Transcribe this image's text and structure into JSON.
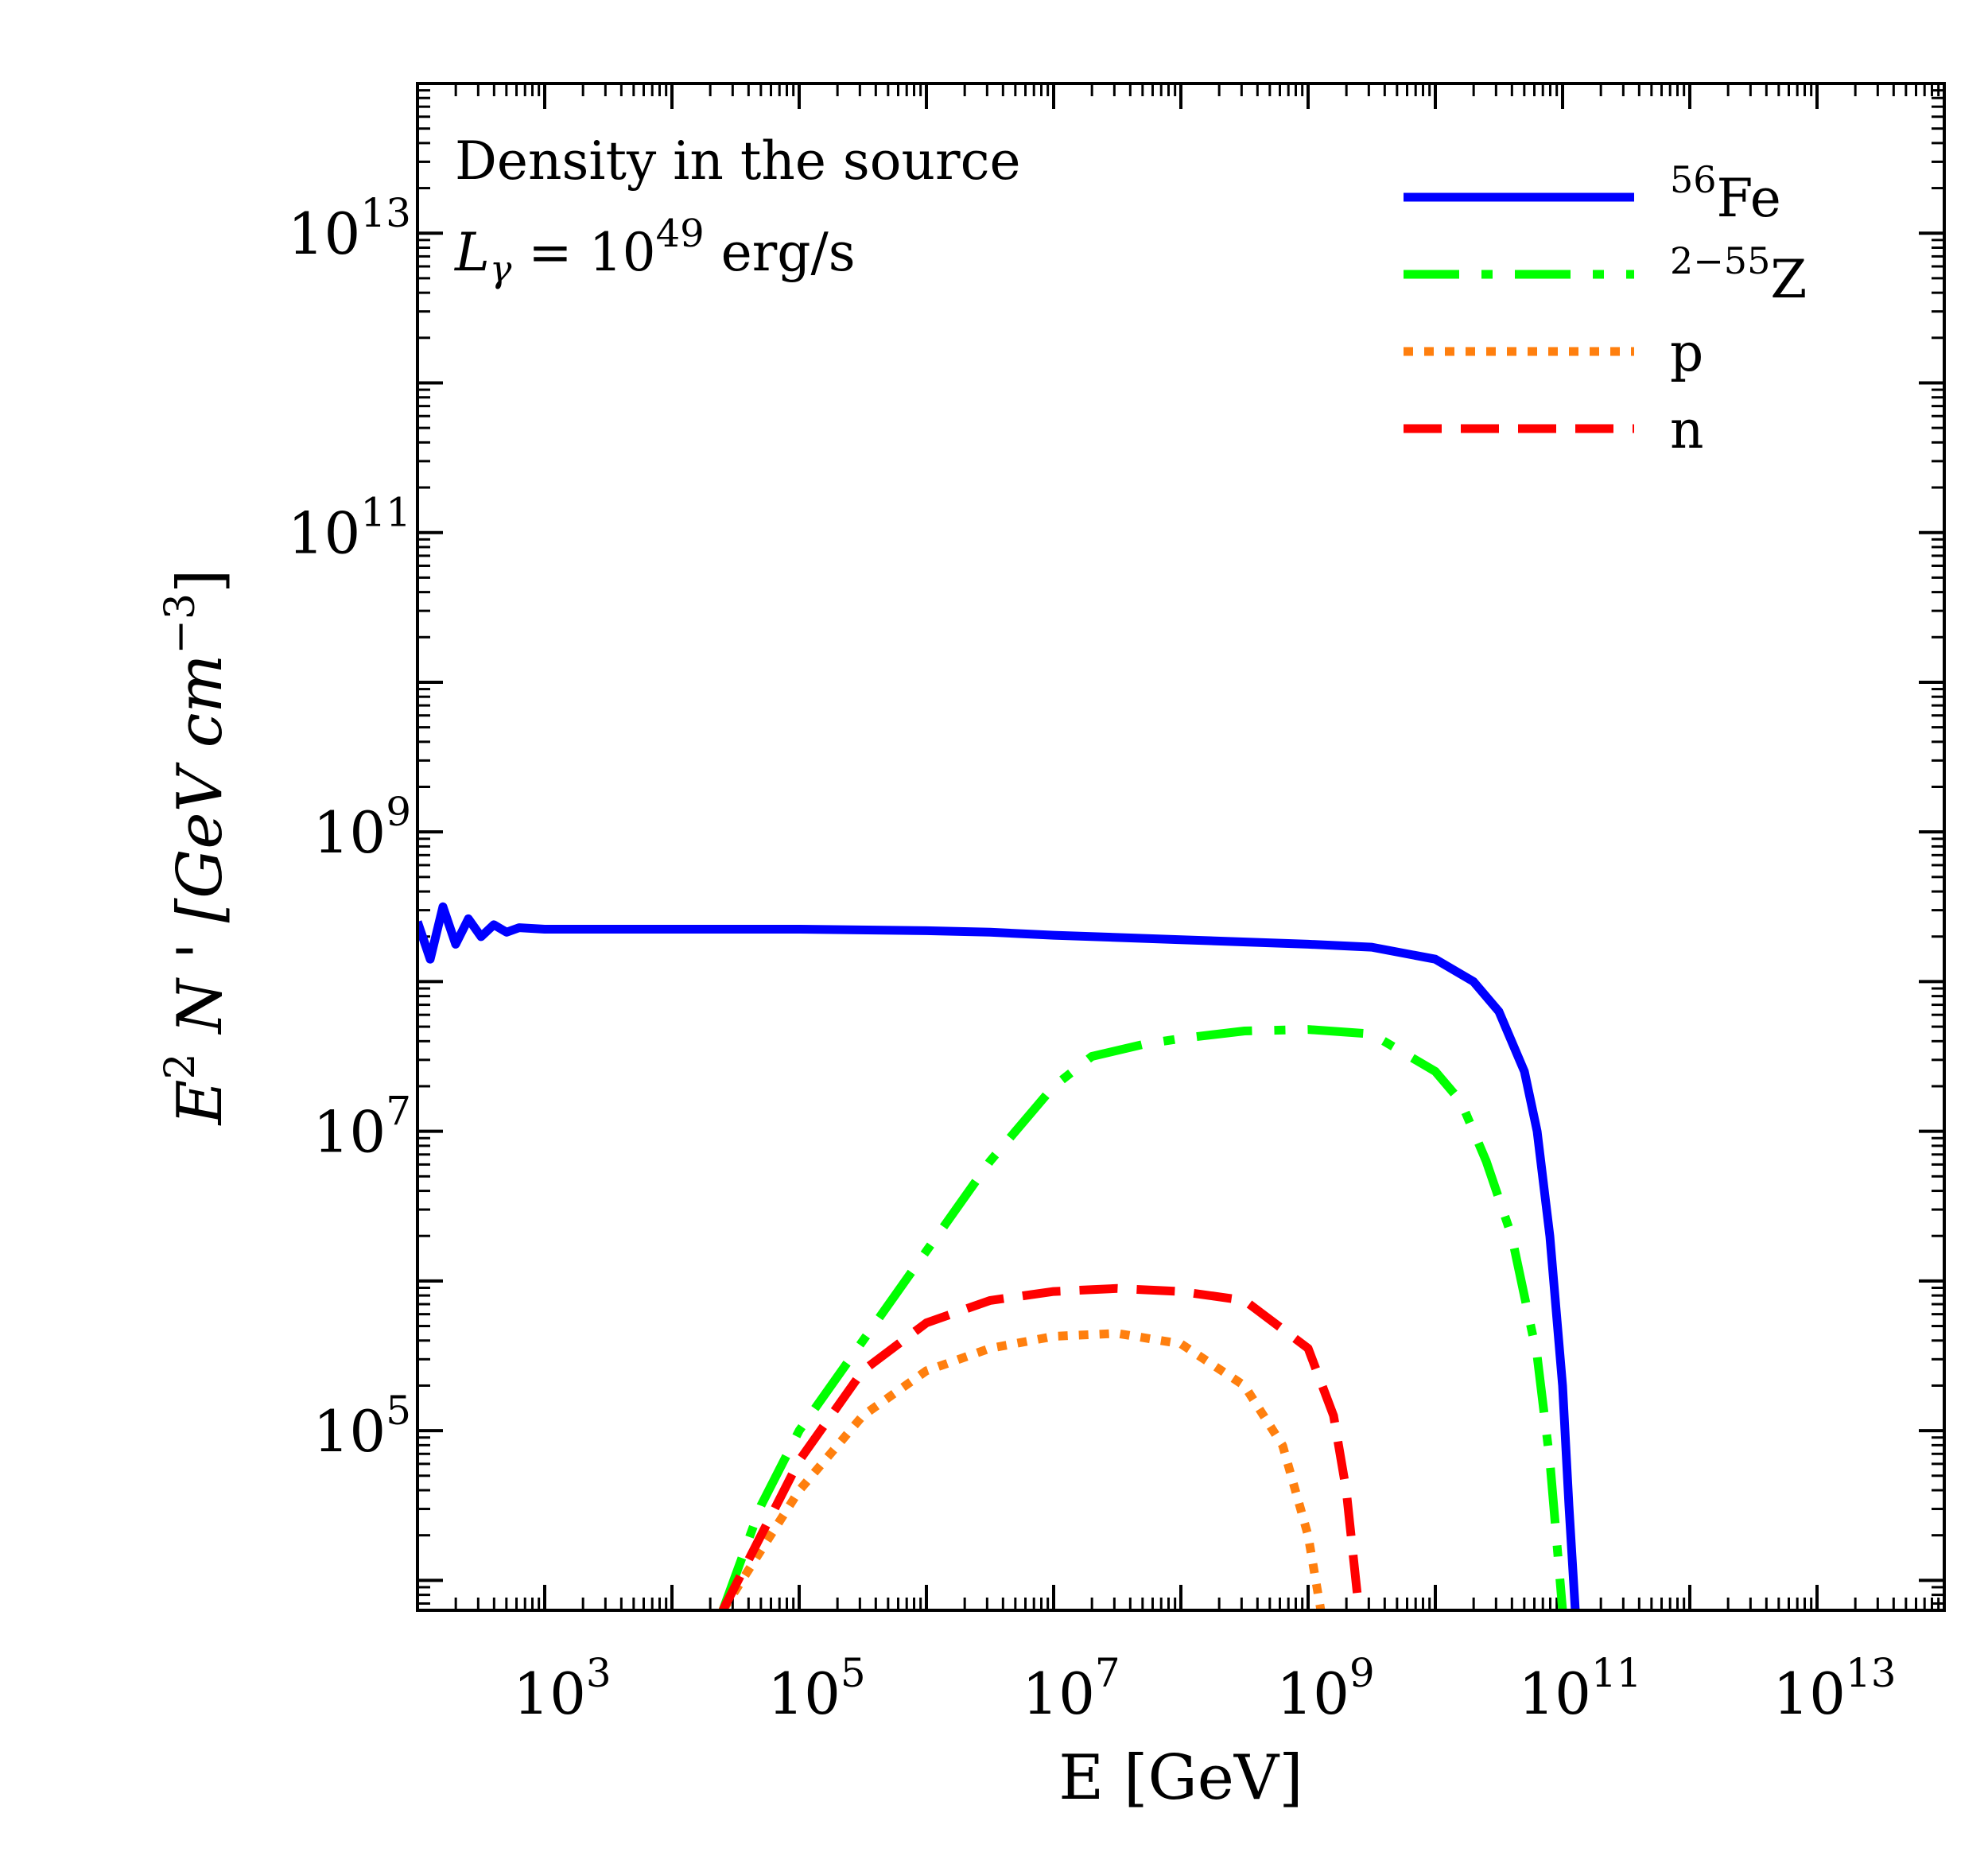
{
  "chart_data": {
    "type": "line",
    "xscale": "log",
    "yscale": "log",
    "xlim_log10": [
      2,
      14
    ],
    "ylim_log10": [
      3.8,
      14
    ],
    "xticks_log10": [
      3,
      5,
      7,
      9,
      11,
      13
    ],
    "yticks_log10": [
      5,
      7,
      9,
      11,
      13
    ],
    "xlabel": "E [GeV]",
    "ylabel": {
      "base": "E",
      "sup": "2",
      "mid": " N ' [GeV cm",
      "unit_sup": "−3",
      "end": "]"
    },
    "tick_base": "10",
    "annotations": {
      "line1": "Density in the source",
      "line2": {
        "sym": "L",
        "sub": "γ",
        "mid": " = 10",
        "sup": "49",
        "end": " erg/s"
      }
    },
    "legend_position": "top-right",
    "series": [
      {
        "key": "fe",
        "legend_sup": "56",
        "legend_text": "Fe",
        "color": "#0000ff",
        "style": "solid",
        "points_log10": [
          [
            2.0,
            8.4
          ],
          [
            2.1,
            8.15
          ],
          [
            2.2,
            8.5
          ],
          [
            2.3,
            8.25
          ],
          [
            2.4,
            8.42
          ],
          [
            2.5,
            8.3
          ],
          [
            2.6,
            8.38
          ],
          [
            2.7,
            8.33
          ],
          [
            2.8,
            8.36
          ],
          [
            3.0,
            8.35
          ],
          [
            3.5,
            8.35
          ],
          [
            4.0,
            8.35
          ],
          [
            5.0,
            8.35
          ],
          [
            6.0,
            8.34
          ],
          [
            6.5,
            8.33
          ],
          [
            7.0,
            8.31
          ],
          [
            8.0,
            8.28
          ],
          [
            9.0,
            8.25
          ],
          [
            9.5,
            8.23
          ],
          [
            10.0,
            8.15
          ],
          [
            10.3,
            8.0
          ],
          [
            10.5,
            7.8
          ],
          [
            10.7,
            7.4
          ],
          [
            10.8,
            7.0
          ],
          [
            10.9,
            6.3
          ],
          [
            11.0,
            5.3
          ],
          [
            11.05,
            4.5
          ],
          [
            11.1,
            3.8
          ]
        ]
      },
      {
        "key": "z",
        "legend_sup": "2−55",
        "legend_text": "Z",
        "color": "#00ff00",
        "style": "dashdot",
        "points_log10": [
          [
            4.4,
            3.8
          ],
          [
            4.7,
            4.5
          ],
          [
            5.0,
            5.0
          ],
          [
            5.5,
            5.6
          ],
          [
            6.0,
            6.2
          ],
          [
            6.5,
            6.8
          ],
          [
            7.0,
            7.3
          ],
          [
            7.3,
            7.5
          ],
          [
            7.7,
            7.58
          ],
          [
            8.0,
            7.62
          ],
          [
            8.5,
            7.67
          ],
          [
            9.0,
            7.68
          ],
          [
            9.5,
            7.65
          ],
          [
            10.0,
            7.4
          ],
          [
            10.2,
            7.2
          ],
          [
            10.4,
            6.8
          ],
          [
            10.6,
            6.3
          ],
          [
            10.8,
            5.5
          ],
          [
            10.9,
            4.8
          ],
          [
            11.0,
            3.8
          ]
        ]
      },
      {
        "key": "p",
        "legend_sup": "",
        "legend_text": "p",
        "color": "#ff7f0e",
        "style": "dotted",
        "points_log10": [
          [
            4.4,
            3.8
          ],
          [
            4.7,
            4.2
          ],
          [
            5.0,
            4.6
          ],
          [
            5.5,
            5.1
          ],
          [
            6.0,
            5.4
          ],
          [
            6.5,
            5.55
          ],
          [
            7.0,
            5.63
          ],
          [
            7.5,
            5.65
          ],
          [
            8.0,
            5.58
          ],
          [
            8.5,
            5.3
          ],
          [
            8.8,
            4.9
          ],
          [
            9.0,
            4.3
          ],
          [
            9.1,
            3.8
          ]
        ]
      },
      {
        "key": "n",
        "legend_sup": "",
        "legend_text": "n",
        "color": "#ff0000",
        "style": "dashed",
        "points_log10": [
          [
            4.4,
            3.8
          ],
          [
            4.7,
            4.3
          ],
          [
            5.0,
            4.8
          ],
          [
            5.5,
            5.4
          ],
          [
            6.0,
            5.72
          ],
          [
            6.5,
            5.87
          ],
          [
            7.0,
            5.93
          ],
          [
            7.5,
            5.95
          ],
          [
            8.0,
            5.93
          ],
          [
            8.5,
            5.87
          ],
          [
            9.0,
            5.55
          ],
          [
            9.2,
            5.1
          ],
          [
            9.3,
            4.6
          ],
          [
            9.4,
            3.8
          ]
        ]
      }
    ]
  }
}
